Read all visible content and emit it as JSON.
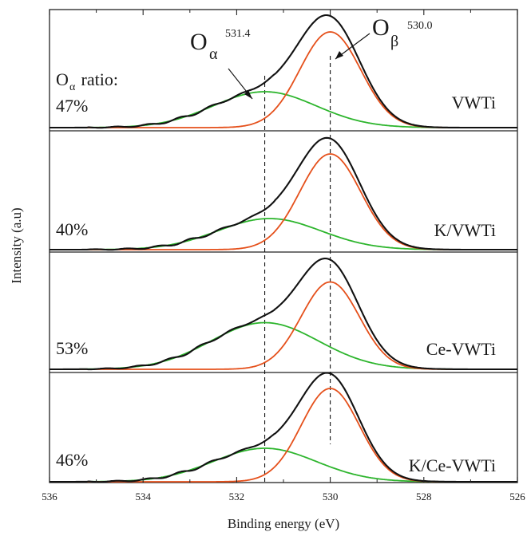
{
  "chart_data": {
    "type": "line",
    "xlabel": "Binding energy (eV)",
    "ylabel": "Intensity (a.u)",
    "xlim": [
      536,
      526
    ],
    "x_reversed": true,
    "x_ticks": [
      536,
      534,
      532,
      530,
      528,
      526
    ],
    "x_tick_labels": [
      "536",
      "534",
      "532",
      "530",
      "528",
      "526"
    ],
    "grid": false,
    "reference_lines_eV": [
      531.4,
      530.0
    ],
    "peaks": {
      "o_alpha": {
        "symbol": "O",
        "subscript": "α",
        "binding_energy_label": "531.4",
        "center": 531.4
      },
      "o_beta": {
        "symbol": "O",
        "subscript": "β",
        "binding_energy_label": "530.0",
        "center": 530.0
      }
    },
    "ratio_header": {
      "symbol": "O",
      "subscript": "α",
      "text": " ratio:"
    },
    "panels": [
      {
        "sample": "VWTi",
        "o_alpha_ratio": "47%",
        "components": {
          "o_beta": {
            "center": 530.0,
            "height": 0.8,
            "sigma": 0.65
          },
          "o_alpha": {
            "center": 531.4,
            "height": 0.3,
            "sigma": 1.1
          }
        }
      },
      {
        "sample": "K/VWTi",
        "o_alpha_ratio": "40%",
        "components": {
          "o_beta": {
            "center": 530.0,
            "height": 0.8,
            "sigma": 0.65
          },
          "o_alpha": {
            "center": 531.3,
            "height": 0.26,
            "sigma": 1.1
          }
        }
      },
      {
        "sample": "Ce-VWTi",
        "o_alpha_ratio": "53%",
        "components": {
          "o_beta": {
            "center": 530.0,
            "height": 0.73,
            "sigma": 0.62
          },
          "o_alpha": {
            "center": 531.4,
            "height": 0.39,
            "sigma": 1.15
          }
        }
      },
      {
        "sample": "K/Ce-VWTi",
        "o_alpha_ratio": "46%",
        "components": {
          "o_beta": {
            "center": 530.0,
            "height": 0.78,
            "sigma": 0.62
          },
          "o_alpha": {
            "center": 531.4,
            "height": 0.28,
            "sigma": 1.1
          }
        }
      }
    ],
    "series": [
      {
        "role": "envelope",
        "color": "#111111"
      },
      {
        "role": "o_beta",
        "color": "#e5501b"
      },
      {
        "role": "o_alpha",
        "color": "#2db52d"
      }
    ]
  }
}
